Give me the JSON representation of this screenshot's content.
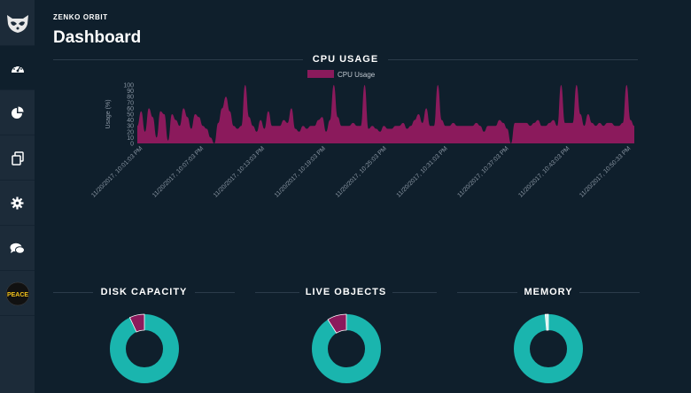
{
  "app": {
    "name": "ZENKO ORBIT",
    "page_title": "Dashboard"
  },
  "sidebar": {
    "items": [
      {
        "icon": "raccoon-logo-icon",
        "active": false
      },
      {
        "icon": "dashboard-gauge-icon",
        "active": true
      },
      {
        "icon": "pie-chart-icon",
        "active": false
      },
      {
        "icon": "copy-files-icon",
        "active": false
      },
      {
        "icon": "gear-icon",
        "active": false
      },
      {
        "icon": "chat-bubbles-icon",
        "active": false
      },
      {
        "icon": "peace-avatar-icon",
        "active": false,
        "label": "PEACE"
      }
    ]
  },
  "cpu": {
    "section_title": "CPU USAGE"
  },
  "chart_data": {
    "type": "area",
    "title": "CPU USAGE",
    "ylabel": "Usage (%)",
    "ylim": [
      0,
      100
    ],
    "yticks": [
      0,
      10,
      20,
      30,
      40,
      50,
      60,
      70,
      80,
      90,
      100
    ],
    "legend": "top",
    "series": [
      {
        "name": "CPU Usage",
        "color": "#8b1a5c",
        "values": [
          30,
          55,
          20,
          60,
          45,
          10,
          55,
          50,
          5,
          50,
          40,
          30,
          60,
          45,
          25,
          50,
          45,
          30,
          25,
          10,
          0,
          35,
          60,
          80,
          55,
          30,
          25,
          30,
          100,
          45,
          30,
          20,
          40,
          25,
          55,
          30,
          30,
          30,
          40,
          35,
          60,
          25,
          20,
          30,
          25,
          30,
          30,
          40,
          45,
          20,
          40,
          100,
          45,
          30,
          30,
          30,
          35,
          30,
          30,
          100,
          25,
          30,
          25,
          20,
          30,
          25,
          25,
          30,
          30,
          35,
          25,
          30,
          40,
          50,
          35,
          60,
          30,
          30,
          100,
          40,
          30,
          30,
          35,
          30,
          30,
          30,
          30,
          30,
          35,
          30,
          20,
          30,
          30,
          30,
          40,
          35,
          25,
          0,
          35,
          35,
          35,
          35,
          30,
          35,
          40,
          30,
          30,
          35,
          40,
          30,
          100,
          35,
          35,
          35,
          100,
          50,
          30,
          50,
          35,
          30,
          35,
          30,
          35,
          35,
          30,
          30,
          35,
          100,
          40,
          30
        ]
      }
    ],
    "x_tick_labels": [
      "11/20/2017, 10:01:03 PM",
      "11/20/2017, 10:07:03 PM",
      "11/20/2017, 10:13:03 PM",
      "11/20/2017, 10:19:03 PM",
      "11/20/2017, 10:25:03 PM",
      "11/20/2017, 10:31:03 PM",
      "11/20/2017, 10:37:03 PM",
      "11/20/2017, 10:43:03 PM",
      "11/20/2017, 10:50:33 PM"
    ],
    "grid": false
  },
  "donuts": [
    {
      "title": "DISK CAPACITY",
      "used_fraction": 0.07,
      "used_color": "#8b1a5c",
      "free_color": "#1ab5ae"
    },
    {
      "title": "LIVE OBJECTS",
      "used_fraction": 0.09,
      "used_color": "#8b1a5c",
      "free_color": "#1ab5ae"
    },
    {
      "title": "MEMORY",
      "used_fraction": 0.015,
      "used_color": "#d8f2f0",
      "free_color": "#1ab5ae"
    }
  ],
  "colors": {
    "background": "#0f1f2c",
    "sidebar": "#1c2b39",
    "accent": "#1ab5ae",
    "series": "#8b1a5c",
    "axis_text": "#8a96a3"
  }
}
